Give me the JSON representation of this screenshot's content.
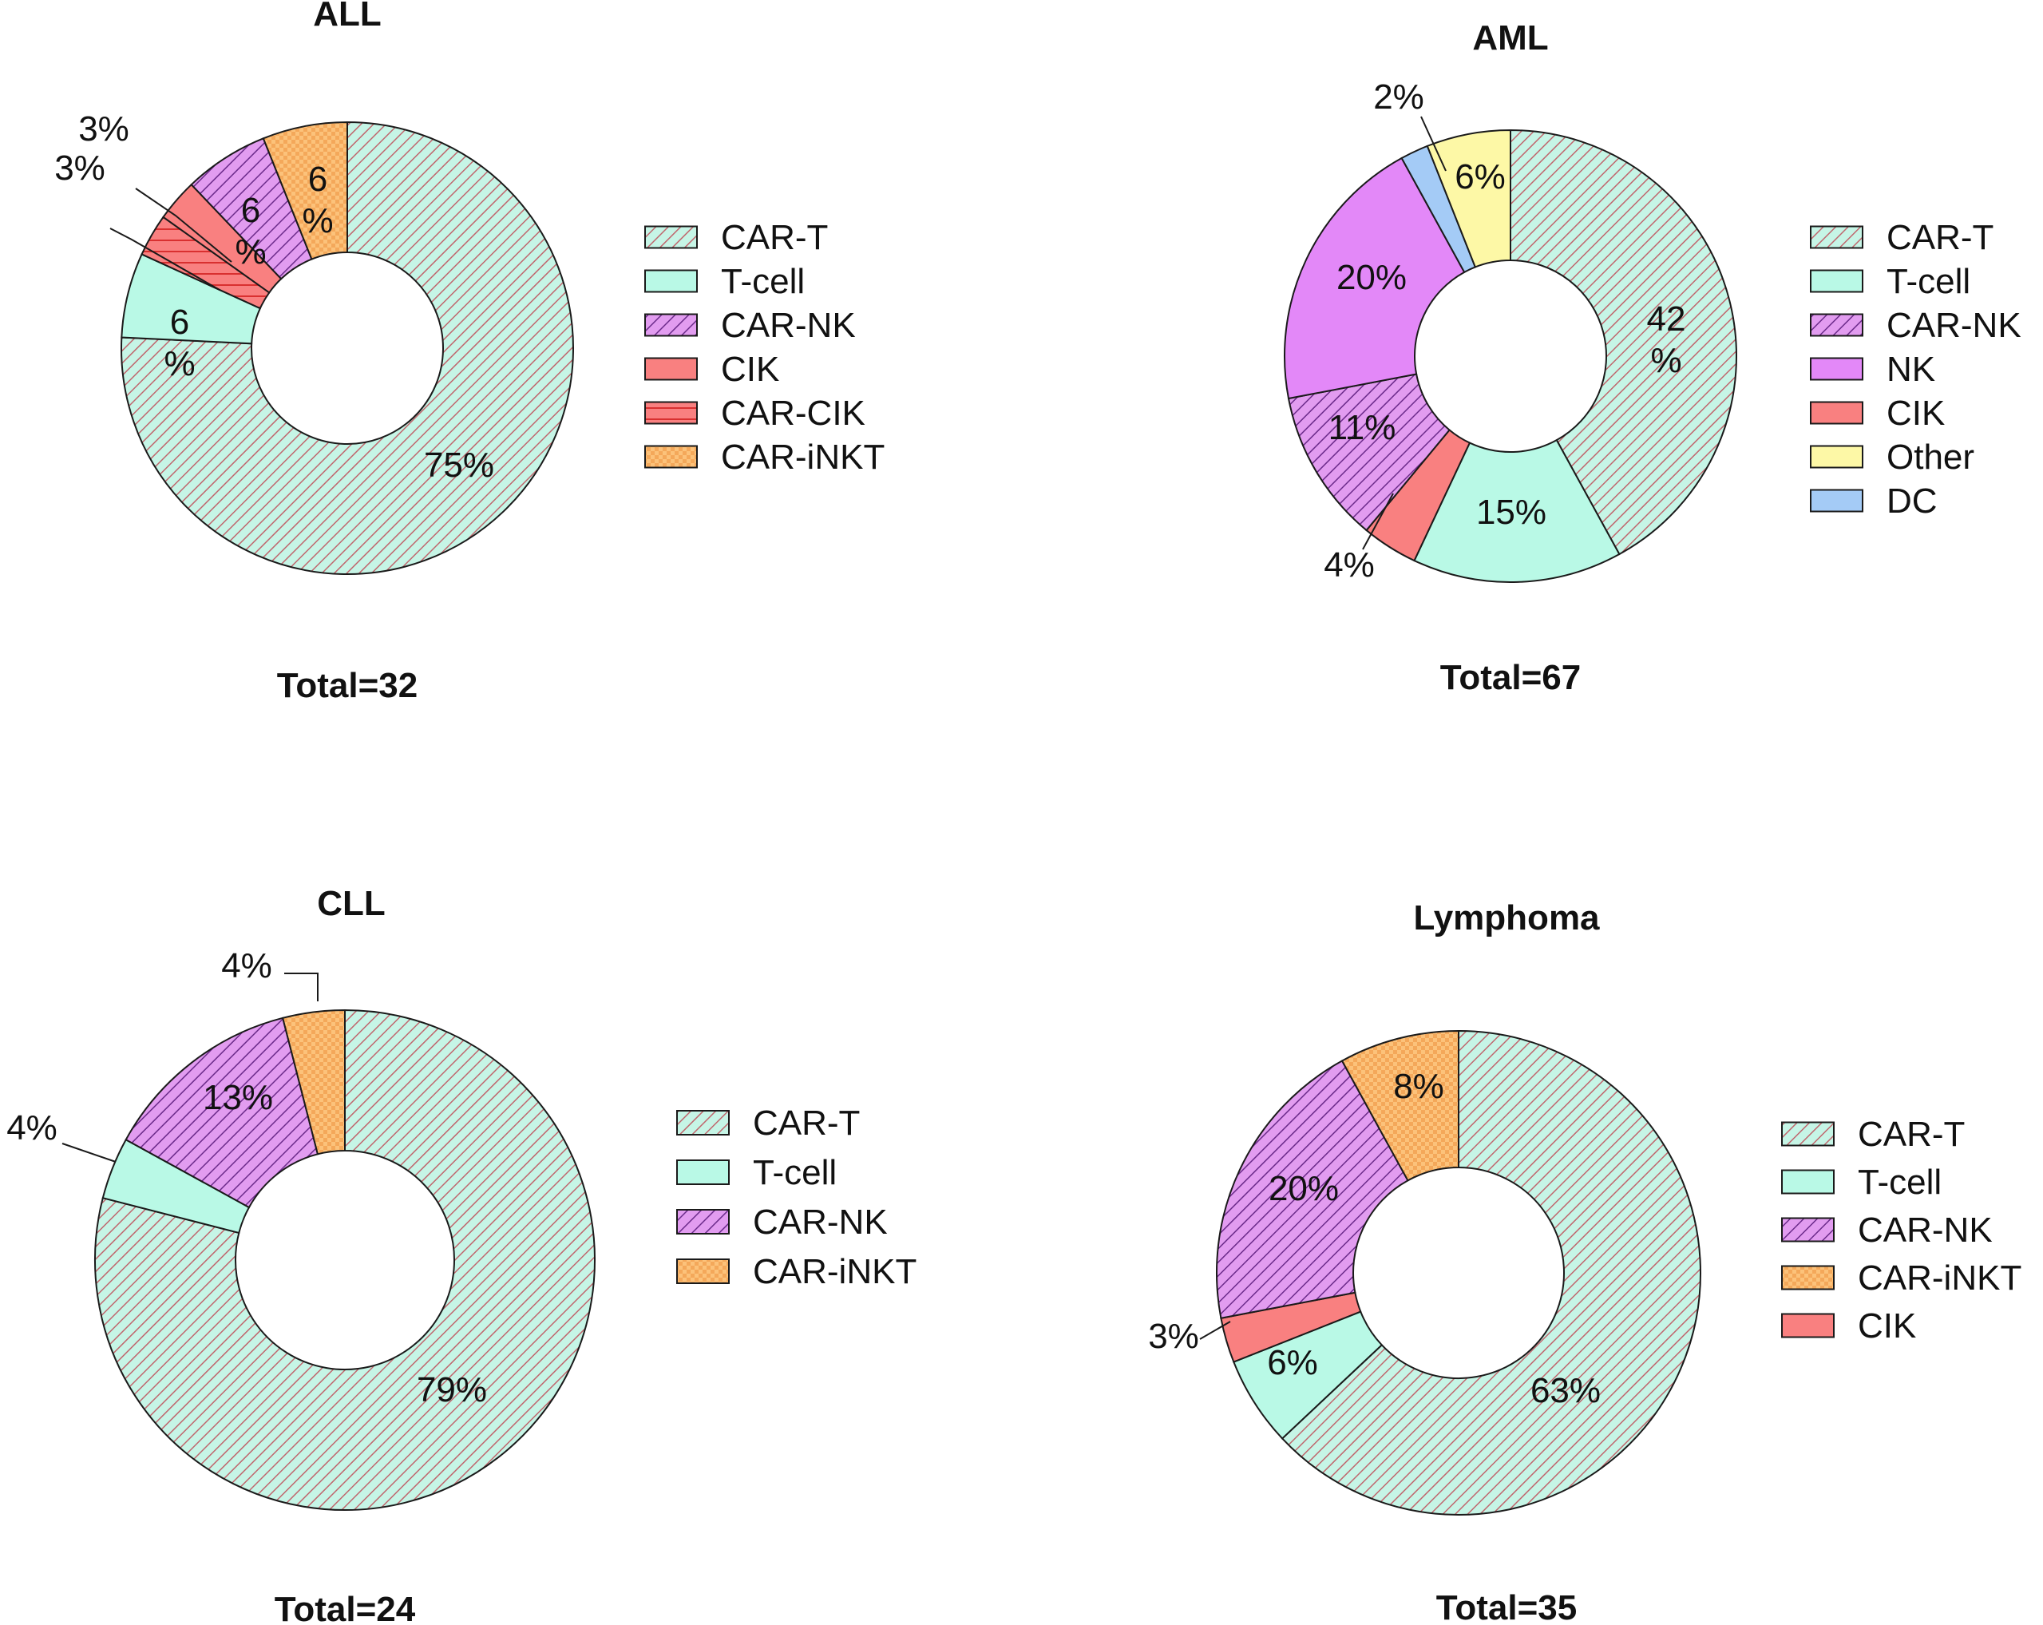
{
  "colors": {
    "teal_light": "#c6f5e6",
    "teal": "#b9f9e6",
    "stripe": "#c0666d",
    "purple_light": "#e29cf0",
    "purple": "#e388f8",
    "red": "#f98080",
    "orange": "#fcc27a",
    "yellow": "#fdf8a6",
    "blue": "#a4cbf6",
    "outline": "#1a1a1a"
  },
  "chart_data": [
    {
      "type": "pie",
      "title": "ALL",
      "total": "Total=32",
      "slices": [
        {
          "name": "CAR-T",
          "value": 75,
          "label": "75%"
        },
        {
          "name": "T-cell",
          "value": 6,
          "label": "6\n%"
        },
        {
          "name": "CAR-CIK",
          "value": 3,
          "label": "3%"
        },
        {
          "name": "CIK",
          "value": 3,
          "label": "3%"
        },
        {
          "name": "CAR-NK",
          "value": 6,
          "label": "6\n%"
        },
        {
          "name": "CAR-iNKT",
          "value": 6,
          "label": "6\n%"
        }
      ],
      "legend": [
        "CAR-T",
        "T-cell",
        "CAR-NK",
        "CIK",
        "CAR-CIK",
        "CAR-iNKT"
      ]
    },
    {
      "type": "pie",
      "title": "AML",
      "total": "Total=67",
      "slices": [
        {
          "name": "CAR-T",
          "value": 42,
          "label": "42\n%"
        },
        {
          "name": "T-cell",
          "value": 15,
          "label": "15%"
        },
        {
          "name": "CIK",
          "value": 4,
          "label": "4%"
        },
        {
          "name": "CAR-NK",
          "value": 11,
          "label": "11%"
        },
        {
          "name": "NK",
          "value": 20,
          "label": "20%"
        },
        {
          "name": "DC",
          "value": 2,
          "label": "2%"
        },
        {
          "name": "Other",
          "value": 6,
          "label": "6%"
        }
      ],
      "legend": [
        "CAR-T",
        "T-cell",
        "CAR-NK",
        "NK",
        "CIK",
        "Other",
        "DC"
      ]
    },
    {
      "type": "pie",
      "title": "CLL",
      "total": "Total=24",
      "slices": [
        {
          "name": "CAR-T",
          "value": 79,
          "label": "79%"
        },
        {
          "name": "T-cell",
          "value": 4,
          "label": "4%"
        },
        {
          "name": "CAR-NK",
          "value": 13,
          "label": "13%"
        },
        {
          "name": "CAR-iNKT",
          "value": 4,
          "label": "4%"
        }
      ],
      "legend": [
        "CAR-T",
        "T-cell",
        "CAR-NK",
        "CAR-iNKT"
      ]
    },
    {
      "type": "pie",
      "title": "Lymphoma",
      "total": "Total=35",
      "slices": [
        {
          "name": "CAR-T",
          "value": 63,
          "label": "63%"
        },
        {
          "name": "T-cell",
          "value": 6,
          "label": "6%"
        },
        {
          "name": "CIK",
          "value": 3,
          "label": "3%"
        },
        {
          "name": "CAR-NK",
          "value": 20,
          "label": "20%"
        },
        {
          "name": "CAR-iNKT",
          "value": 8,
          "label": "8%"
        }
      ],
      "legend": [
        "CAR-T",
        "T-cell",
        "CAR-NK",
        "CAR-iNKT",
        "CIK"
      ]
    }
  ]
}
